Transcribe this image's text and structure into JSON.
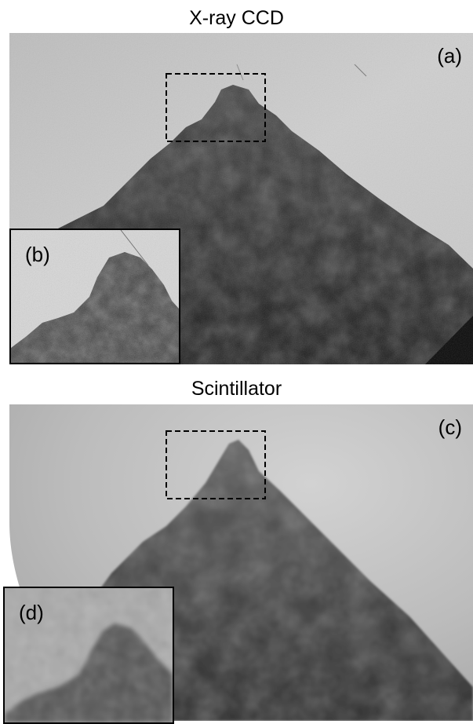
{
  "panels": [
    {
      "title": "X-ray CCD",
      "label": "(a)",
      "inset_label": "(b)"
    },
    {
      "title": "Scintillator",
      "label": "(c)",
      "inset_label": "(d)"
    }
  ]
}
